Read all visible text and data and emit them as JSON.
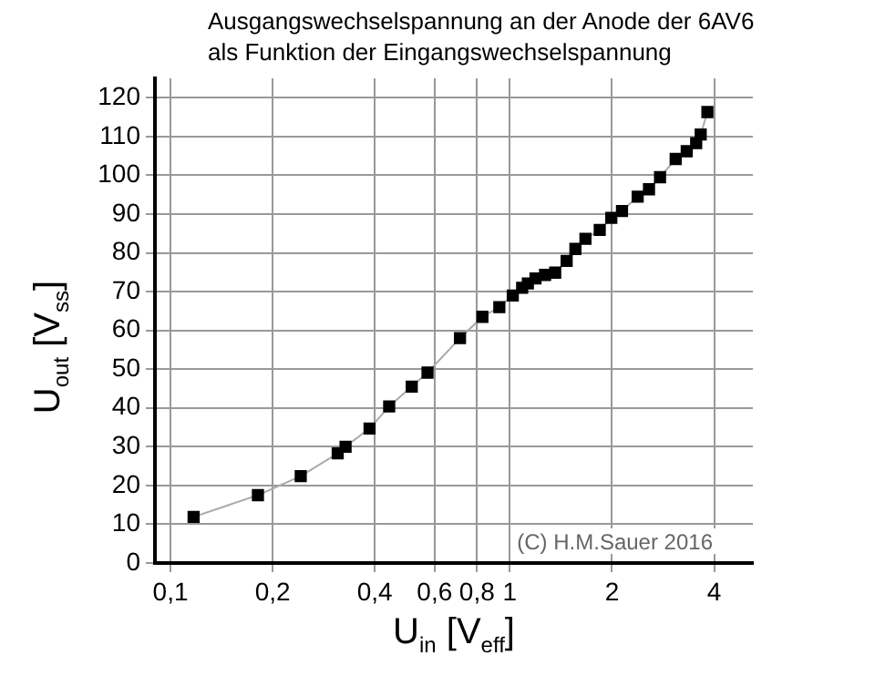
{
  "chart_data": {
    "type": "line",
    "title": "Ausgangswechselspannung an der Anode der 6AV6\nals Funktion der Eingangswechselspannung",
    "xlabel": "U$_{in}$ [V$_{eff}$]",
    "ylabel": "U$_{out}$ [V$_{ss}$]",
    "annotations": [
      "(C) H.M.Sauer 2016"
    ],
    "x": [
      0.117,
      0.181,
      0.242,
      0.311,
      0.328,
      0.386,
      0.441,
      0.514,
      0.572,
      0.713,
      0.83,
      0.931,
      1.02,
      1.087,
      1.13,
      1.19,
      1.27,
      1.36,
      1.47,
      1.56,
      1.67,
      1.84,
      1.99,
      2.14,
      2.38,
      2.57,
      2.77,
      3.08,
      3.32,
      3.54,
      3.65,
      3.82
    ],
    "series": [
      {
        "color": "#000000",
        "values": [
          11.9,
          17.5,
          22.4,
          28.3,
          30,
          34.7,
          40.4,
          45.5,
          49.1,
          58,
          63.5,
          66,
          69,
          71,
          72.1,
          73.4,
          74.3,
          74.9,
          77.9,
          81,
          83.6,
          85.9,
          89,
          90.8,
          94.5,
          96.4,
          99.5,
          104.2,
          106.2,
          108.3,
          110.5,
          116.3
        ]
      }
    ],
    "log": "x",
    "xlim": [
      0.09,
      5.2
    ],
    "xticks": [
      {
        "value": 0.1,
        "label": "0,1"
      },
      {
        "value": 0.2,
        "label": "0,2"
      },
      {
        "value": 0.4,
        "label": "0,4"
      },
      {
        "value": 0.6,
        "label": "0,6"
      },
      {
        "value": 0.8,
        "label": "0,8"
      },
      1,
      2,
      4
    ],
    "ylim": [
      0,
      125
    ],
    "yticks": [
      0,
      10,
      20,
      30,
      40,
      50,
      60,
      70,
      80,
      90,
      100,
      110,
      120
    ],
    "grid": true,
    "legend": false,
    "marker": "square",
    "line_style": "solid"
  }
}
